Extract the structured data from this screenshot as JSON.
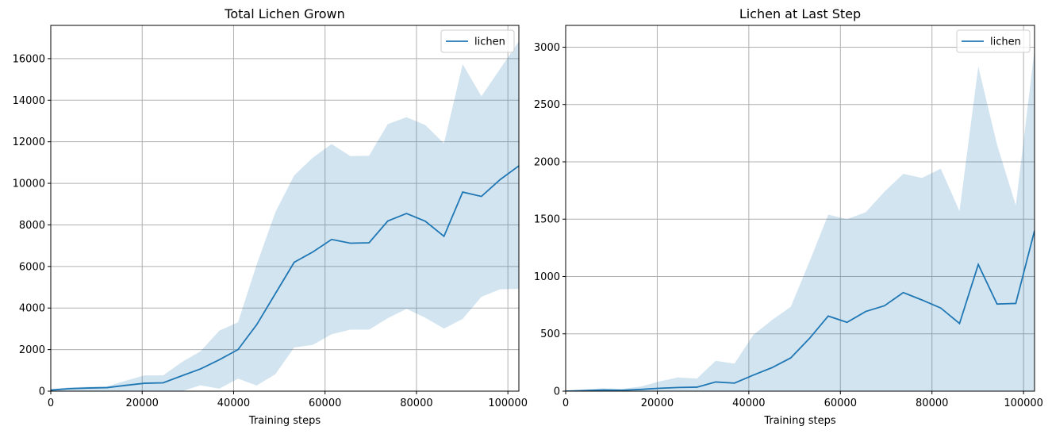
{
  "colors": {
    "line": "#1f77b4",
    "band": "#1f77b4",
    "band_opacity": 0.2,
    "grid": "#b0b0b0"
  },
  "chart_data": [
    {
      "type": "line",
      "title": "Total Lichen Grown",
      "xlabel": "Training steps",
      "ylabel": "",
      "xlim": [
        0,
        102400
      ],
      "ylim": [
        0,
        17600
      ],
      "xticks": [
        0,
        20000,
        40000,
        60000,
        80000,
        100000
      ],
      "yticks": [
        0,
        2000,
        4000,
        6000,
        8000,
        10000,
        12000,
        14000,
        16000
      ],
      "grid": true,
      "legend_position": "top-right",
      "series": [
        {
          "name": "lichen",
          "x": [
            0,
            4096,
            8192,
            12288,
            16384,
            20480,
            24576,
            28672,
            32768,
            36864,
            40960,
            45056,
            49152,
            53248,
            57344,
            61440,
            65536,
            69632,
            73728,
            77824,
            81920,
            86016,
            90112,
            94208,
            98304,
            102400
          ],
          "values": [
            50,
            120,
            150,
            170,
            280,
            380,
            400,
            740,
            1070,
            1510,
            2000,
            3200,
            4700,
            6200,
            6700,
            7300,
            7120,
            7140,
            8190,
            8550,
            8180,
            7450,
            9580,
            9370,
            10180,
            10840
          ],
          "lower": [
            0,
            0,
            0,
            0,
            0,
            0,
            0,
            0,
            280,
            120,
            600,
            270,
            820,
            2100,
            2230,
            2740,
            2960,
            2960,
            3510,
            3960,
            3530,
            3010,
            3480,
            4540,
            4900,
            4920
          ],
          "upper": [
            100,
            180,
            210,
            230,
            500,
            760,
            760,
            1400,
            1920,
            2910,
            3310,
            6100,
            8620,
            10380,
            11240,
            11890,
            11310,
            11330,
            12850,
            13180,
            12810,
            11920,
            15730,
            14190,
            15510,
            16830
          ]
        }
      ]
    },
    {
      "type": "line",
      "title": "Lichen at Last Step",
      "xlabel": "Training steps",
      "ylabel": "",
      "xlim": [
        0,
        102400
      ],
      "ylim": [
        0,
        3190
      ],
      "xticks": [
        0,
        20000,
        40000,
        60000,
        80000,
        100000
      ],
      "yticks": [
        0,
        500,
        1000,
        1500,
        2000,
        2500,
        3000
      ],
      "grid": true,
      "legend_position": "top-right",
      "series": [
        {
          "name": "lichen",
          "x": [
            0,
            4096,
            8192,
            12288,
            16384,
            20480,
            24576,
            28672,
            32768,
            36864,
            40960,
            45056,
            49152,
            53248,
            57344,
            61440,
            65536,
            69632,
            73728,
            77824,
            81920,
            86016,
            90112,
            94208,
            98304,
            102400
          ],
          "values": [
            0,
            5,
            10,
            8,
            15,
            25,
            32,
            35,
            80,
            70,
            140,
            205,
            290,
            460,
            655,
            600,
            695,
            745,
            860,
            795,
            725,
            590,
            1105,
            760,
            765,
            1400
          ],
          "lower": [
            0,
            0,
            0,
            0,
            0,
            0,
            0,
            0,
            0,
            0,
            0,
            0,
            0,
            0,
            0,
            0,
            0,
            0,
            0,
            0,
            0,
            0,
            0,
            0,
            0,
            0
          ],
          "upper": [
            0,
            15,
            25,
            20,
            40,
            85,
            120,
            110,
            265,
            240,
            490,
            620,
            735,
            1130,
            1540,
            1500,
            1560,
            1740,
            1895,
            1860,
            1940,
            1570,
            2830,
            2150,
            1620,
            2980
          ]
        }
      ]
    }
  ]
}
